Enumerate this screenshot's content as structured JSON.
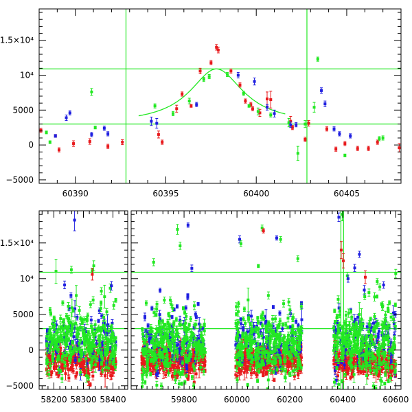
{
  "colors": {
    "red": "#e8191c",
    "green": "#22e822",
    "blue": "#1f1fe0",
    "ref_line": "#22e822",
    "axis": "#000000"
  },
  "chart_data": [
    {
      "type": "scatter",
      "title": "",
      "xlabel": "",
      "ylabel": "",
      "xlim": [
        60388,
        60408
      ],
      "ylim": [
        -5500,
        19500
      ],
      "grid": false,
      "legend": "none",
      "y_tick_values": [
        -5000,
        0,
        5000,
        10000,
        15000
      ],
      "y_tick_labels": [
        "−5000",
        "0",
        "5000",
        "10⁴",
        "1.5×10⁴"
      ],
      "x_tick_values": [
        60390,
        60395,
        60400,
        60405
      ],
      "x_tick_labels": [
        "60390",
        "60395",
        "60400",
        "60405"
      ],
      "ref_hlines": [
        3000,
        10900
      ],
      "ref_vlines": [
        60392.8,
        60402.8
      ],
      "model_curve": {
        "type": "lorentzian",
        "baseline": 3000,
        "amplitude": 7900,
        "center": 60397.8,
        "half_width": 1.8,
        "x_range": [
          60393.5,
          60401.6
        ]
      },
      "series": [
        {
          "color": "red",
          "points": [
            [
              60388.1,
              2100,
              300
            ],
            [
              60388.9,
              1300,
              200
            ],
            [
              60389.1,
              -700,
              300
            ],
            [
              60389.9,
              200,
              400
            ],
            [
              60390.8,
              500,
              400
            ],
            [
              60391.8,
              -200,
              300
            ],
            [
              60392.6,
              400,
              350
            ],
            [
              60394.6,
              1500,
              500
            ],
            [
              60394.8,
              400,
              300
            ],
            [
              60395.6,
              5200,
              500
            ],
            [
              60395.9,
              7300,
              300
            ],
            [
              60396.4,
              5600,
              200
            ],
            [
              60396.9,
              10600,
              400
            ],
            [
              60397.5,
              11800,
              300
            ],
            [
              60397.8,
              14000,
              400
            ],
            [
              60397.9,
              13600,
              400
            ],
            [
              60398.6,
              10600,
              300
            ],
            [
              60399.1,
              8600,
              300
            ],
            [
              60399.4,
              6300,
              300
            ],
            [
              60399.7,
              5800,
              300
            ],
            [
              60399.8,
              5200,
              300
            ],
            [
              60400.2,
              4600,
              500
            ],
            [
              60400.6,
              6600,
              1000
            ],
            [
              60400.8,
              6500,
              1200
            ],
            [
              60401.9,
              3400,
              700
            ],
            [
              60402.0,
              2500,
              300
            ],
            [
              60402.7,
              800,
              300
            ],
            [
              60402.9,
              3100,
              400
            ],
            [
              60403.9,
              2300,
              300
            ],
            [
              60404.4,
              -600,
              300
            ],
            [
              60404.9,
              200,
              300
            ],
            [
              60405.6,
              -500,
              300
            ],
            [
              60406.2,
              -500,
              300
            ],
            [
              60406.7,
              400,
              300
            ],
            [
              60407.9,
              -400,
              600
            ]
          ]
        },
        {
          "color": "green",
          "points": [
            [
              60388.4,
              1800,
              200
            ],
            [
              60388.6,
              400,
              200
            ],
            [
              60390.9,
              7600,
              500
            ],
            [
              60391.1,
              2500,
              200
            ],
            [
              60394.4,
              5600,
              300
            ],
            [
              60395.4,
              4500,
              300
            ],
            [
              60396.3,
              6300,
              400
            ],
            [
              60397.1,
              9400,
              300
            ],
            [
              60397.4,
              9800,
              300
            ],
            [
              60398.4,
              10100,
              300
            ],
            [
              60399.3,
              7400,
              300
            ],
            [
              60399.6,
              5600,
              200
            ],
            [
              60400.1,
              4800,
              500
            ],
            [
              60400.8,
              4300,
              300
            ],
            [
              60401.8,
              3200,
              600
            ],
            [
              60402.3,
              -1200,
              1000
            ],
            [
              60402.7,
              3000,
              500
            ],
            [
              60403.2,
              5400,
              700
            ],
            [
              60403.4,
              12300,
              300
            ],
            [
              60404.9,
              -1500,
              200
            ],
            [
              60406.8,
              900,
              300
            ],
            [
              60407.0,
              1000,
              300
            ]
          ]
        },
        {
          "color": "blue",
          "points": [
            [
              60388.9,
              1300,
              200
            ],
            [
              60389.5,
              3900,
              400
            ],
            [
              60389.7,
              4600,
              300
            ],
            [
              60390.9,
              1500,
              300
            ],
            [
              60391.6,
              2400,
              300
            ],
            [
              60391.8,
              1600,
              300
            ],
            [
              60394.2,
              3400,
              600
            ],
            [
              60394.5,
              3100,
              700
            ],
            [
              60396.7,
              5800,
              300
            ],
            [
              60399.0,
              10000,
              400
            ],
            [
              60399.9,
              9100,
              500
            ],
            [
              60400.6,
              5400,
              400
            ],
            [
              60401.0,
              4500,
              500
            ],
            [
              60401.9,
              2900,
              400
            ],
            [
              60402.2,
              2900,
              300
            ],
            [
              60403.6,
              7800,
              400
            ],
            [
              60403.8,
              5900,
              400
            ],
            [
              60404.3,
              2300,
              300
            ],
            [
              60404.6,
              1600,
              300
            ],
            [
              60405.2,
              1300,
              300
            ]
          ]
        }
      ]
    },
    {
      "type": "scatter",
      "title": "",
      "xlabel": "",
      "ylabel": "",
      "x_segments": [
        {
          "data_range": [
            58150,
            58450
          ]
        },
        {
          "data_range": [
            59600,
            60620
          ]
        }
      ],
      "ylim": [
        -5500,
        19500
      ],
      "grid": false,
      "legend": "none",
      "y_tick_values": [
        -5000,
        0,
        5000,
        10000,
        15000
      ],
      "y_tick_labels": [
        "−5000",
        "0",
        "5000",
        "10⁴",
        "1.5×10⁴"
      ],
      "x_tick_values": [
        58200,
        58300,
        58400,
        59800,
        60000,
        60200,
        60400,
        60600
      ],
      "x_tick_labels": [
        "58200",
        "58300",
        "58400",
        "59800",
        "60000",
        "60200",
        "60400",
        "60600"
      ],
      "ref_hlines": [
        3000,
        10900
      ],
      "ref_vlines": [
        60392.8,
        60402.8
      ],
      "observing_seasons": [
        [
          58175,
          58410
        ],
        [
          59640,
          59880
        ],
        [
          59995,
          60245
        ],
        [
          60365,
          60600
        ]
      ],
      "season_level": {
        "red": -1500,
        "green": 600,
        "blue": 1200,
        "scatter": [
          1000,
          2200,
          1800
        ]
      },
      "highlight_points": [
        {
          "color": "blue",
          "x": 58270,
          "y": 18200,
          "err": 1500
        },
        {
          "color": "red",
          "x": 58330,
          "y": 10600,
          "err": 800
        },
        {
          "color": "green",
          "x": 58335,
          "y": 11800,
          "err": 700
        },
        {
          "color": "blue",
          "x": 58395,
          "y": 9000,
          "err": 600
        },
        {
          "color": "green",
          "x": 58230,
          "y": 6600,
          "err": 300
        },
        {
          "color": "green",
          "x": 59685,
          "y": 12300,
          "err": 500
        },
        {
          "color": "green",
          "x": 59775,
          "y": 16900,
          "err": 700
        },
        {
          "color": "green",
          "x": 59785,
          "y": 14600,
          "err": 500
        },
        {
          "color": "blue",
          "x": 59815,
          "y": 17500,
          "err": 300
        },
        {
          "color": "blue",
          "x": 60010,
          "y": 15500,
          "err": 500
        },
        {
          "color": "green",
          "x": 60015,
          "y": 14900,
          "err": 400
        },
        {
          "color": "green",
          "x": 60095,
          "y": 17100,
          "err": 400
        },
        {
          "color": "red",
          "x": 60100,
          "y": 16700,
          "err": 300
        },
        {
          "color": "blue",
          "x": 60150,
          "y": 15700,
          "err": 300
        },
        {
          "color": "green",
          "x": 60165,
          "y": 15500,
          "err": 400
        },
        {
          "color": "green",
          "x": 60230,
          "y": 12800,
          "err": 400
        },
        {
          "color": "blue",
          "x": 60385,
          "y": 18600,
          "err": 600
        },
        {
          "color": "red",
          "x": 60394,
          "y": 14000,
          "err": 1200
        },
        {
          "color": "green",
          "x": 60398,
          "y": 19000,
          "err": 900
        },
        {
          "color": "red",
          "x": 60402,
          "y": 12500,
          "err": 1000
        },
        {
          "color": "blue",
          "x": 60420,
          "y": 10000,
          "err": 500
        },
        {
          "color": "blue",
          "x": 60445,
          "y": 11500,
          "err": 500
        },
        {
          "color": "red",
          "x": 60485,
          "y": 10200,
          "err": 900
        },
        {
          "color": "green",
          "x": 60530,
          "y": 9600,
          "err": 400
        },
        {
          "color": "green",
          "x": 60600,
          "y": 10700,
          "err": 600
        },
        {
          "color": "blue",
          "x": 60598,
          "y": 5000,
          "err": 400
        }
      ]
    }
  ]
}
